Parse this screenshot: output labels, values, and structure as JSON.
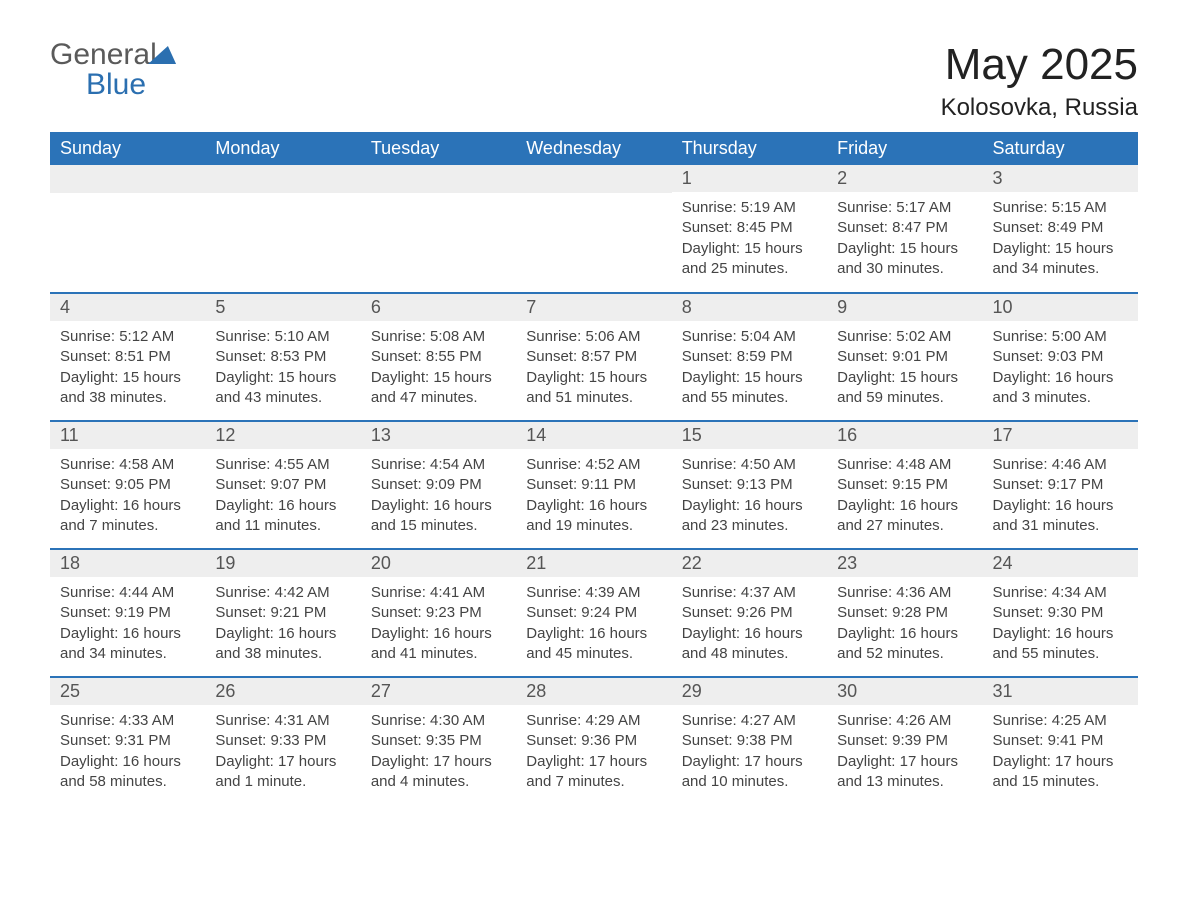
{
  "brand": {
    "word1": "General",
    "word2": "Blue"
  },
  "title": "May 2025",
  "location": "Kolosovka, Russia",
  "colors": {
    "header_bg": "#2b73b8",
    "header_text": "#ffffff",
    "daynum_bg": "#eeeeee",
    "border": "#2b73b8",
    "text": "#444444",
    "brand_gray": "#5a5a5a",
    "brand_blue": "#2b6fb0"
  },
  "typography": {
    "title_fontsize": 44,
    "location_fontsize": 24,
    "header_fontsize": 18,
    "daynum_fontsize": 18,
    "body_fontsize": 15
  },
  "weekdays": [
    "Sunday",
    "Monday",
    "Tuesday",
    "Wednesday",
    "Thursday",
    "Friday",
    "Saturday"
  ],
  "weeks": [
    [
      null,
      null,
      null,
      null,
      {
        "n": "1",
        "sr": "5:19 AM",
        "ss": "8:45 PM",
        "dl": "15 hours and 25 minutes."
      },
      {
        "n": "2",
        "sr": "5:17 AM",
        "ss": "8:47 PM",
        "dl": "15 hours and 30 minutes."
      },
      {
        "n": "3",
        "sr": "5:15 AM",
        "ss": "8:49 PM",
        "dl": "15 hours and 34 minutes."
      }
    ],
    [
      {
        "n": "4",
        "sr": "5:12 AM",
        "ss": "8:51 PM",
        "dl": "15 hours and 38 minutes."
      },
      {
        "n": "5",
        "sr": "5:10 AM",
        "ss": "8:53 PM",
        "dl": "15 hours and 43 minutes."
      },
      {
        "n": "6",
        "sr": "5:08 AM",
        "ss": "8:55 PM",
        "dl": "15 hours and 47 minutes."
      },
      {
        "n": "7",
        "sr": "5:06 AM",
        "ss": "8:57 PM",
        "dl": "15 hours and 51 minutes."
      },
      {
        "n": "8",
        "sr": "5:04 AM",
        "ss": "8:59 PM",
        "dl": "15 hours and 55 minutes."
      },
      {
        "n": "9",
        "sr": "5:02 AM",
        "ss": "9:01 PM",
        "dl": "15 hours and 59 minutes."
      },
      {
        "n": "10",
        "sr": "5:00 AM",
        "ss": "9:03 PM",
        "dl": "16 hours and 3 minutes."
      }
    ],
    [
      {
        "n": "11",
        "sr": "4:58 AM",
        "ss": "9:05 PM",
        "dl": "16 hours and 7 minutes."
      },
      {
        "n": "12",
        "sr": "4:55 AM",
        "ss": "9:07 PM",
        "dl": "16 hours and 11 minutes."
      },
      {
        "n": "13",
        "sr": "4:54 AM",
        "ss": "9:09 PM",
        "dl": "16 hours and 15 minutes."
      },
      {
        "n": "14",
        "sr": "4:52 AM",
        "ss": "9:11 PM",
        "dl": "16 hours and 19 minutes."
      },
      {
        "n": "15",
        "sr": "4:50 AM",
        "ss": "9:13 PM",
        "dl": "16 hours and 23 minutes."
      },
      {
        "n": "16",
        "sr": "4:48 AM",
        "ss": "9:15 PM",
        "dl": "16 hours and 27 minutes."
      },
      {
        "n": "17",
        "sr": "4:46 AM",
        "ss": "9:17 PM",
        "dl": "16 hours and 31 minutes."
      }
    ],
    [
      {
        "n": "18",
        "sr": "4:44 AM",
        "ss": "9:19 PM",
        "dl": "16 hours and 34 minutes."
      },
      {
        "n": "19",
        "sr": "4:42 AM",
        "ss": "9:21 PM",
        "dl": "16 hours and 38 minutes."
      },
      {
        "n": "20",
        "sr": "4:41 AM",
        "ss": "9:23 PM",
        "dl": "16 hours and 41 minutes."
      },
      {
        "n": "21",
        "sr": "4:39 AM",
        "ss": "9:24 PM",
        "dl": "16 hours and 45 minutes."
      },
      {
        "n": "22",
        "sr": "4:37 AM",
        "ss": "9:26 PM",
        "dl": "16 hours and 48 minutes."
      },
      {
        "n": "23",
        "sr": "4:36 AM",
        "ss": "9:28 PM",
        "dl": "16 hours and 52 minutes."
      },
      {
        "n": "24",
        "sr": "4:34 AM",
        "ss": "9:30 PM",
        "dl": "16 hours and 55 minutes."
      }
    ],
    [
      {
        "n": "25",
        "sr": "4:33 AM",
        "ss": "9:31 PM",
        "dl": "16 hours and 58 minutes."
      },
      {
        "n": "26",
        "sr": "4:31 AM",
        "ss": "9:33 PM",
        "dl": "17 hours and 1 minute."
      },
      {
        "n": "27",
        "sr": "4:30 AM",
        "ss": "9:35 PM",
        "dl": "17 hours and 4 minutes."
      },
      {
        "n": "28",
        "sr": "4:29 AM",
        "ss": "9:36 PM",
        "dl": "17 hours and 7 minutes."
      },
      {
        "n": "29",
        "sr": "4:27 AM",
        "ss": "9:38 PM",
        "dl": "17 hours and 10 minutes."
      },
      {
        "n": "30",
        "sr": "4:26 AM",
        "ss": "9:39 PM",
        "dl": "17 hours and 13 minutes."
      },
      {
        "n": "31",
        "sr": "4:25 AM",
        "ss": "9:41 PM",
        "dl": "17 hours and 15 minutes."
      }
    ]
  ],
  "labels": {
    "sunrise": "Sunrise: ",
    "sunset": "Sunset: ",
    "daylight": "Daylight: "
  }
}
